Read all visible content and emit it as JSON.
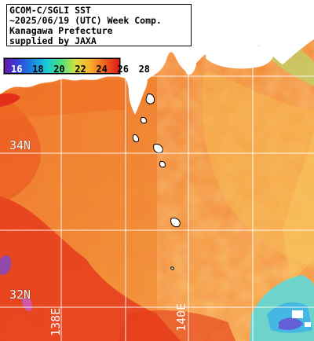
{
  "title": {
    "line1": "GCOM-C/SGLI SST",
    "line2": "~2025/06/19 (UTC) Week Comp.",
    "line3": "Kanagawa Prefecture",
    "line4": "supplied by JAXA"
  },
  "legend": {
    "ticks": [
      "16",
      "18",
      "20",
      "22",
      "24",
      "26",
      "28"
    ],
    "colors": [
      "#6a1aa8",
      "#1a7ae0",
      "#18c8d8",
      "#4ee07a",
      "#d8e040",
      "#f8b030",
      "#f06a20",
      "#e01818"
    ]
  },
  "grid": {
    "lat_labels": [
      "34N",
      "32N"
    ],
    "lon_labels": [
      "138E",
      "140E"
    ]
  },
  "colors": {
    "land": "#ffffff",
    "ocean_warm": "#f06a20",
    "ocean_hot": "#e42a14",
    "ocean_mild": "#f4a040",
    "ocean_cool": "#5ef0e0",
    "grid_line": "#ffffff"
  }
}
